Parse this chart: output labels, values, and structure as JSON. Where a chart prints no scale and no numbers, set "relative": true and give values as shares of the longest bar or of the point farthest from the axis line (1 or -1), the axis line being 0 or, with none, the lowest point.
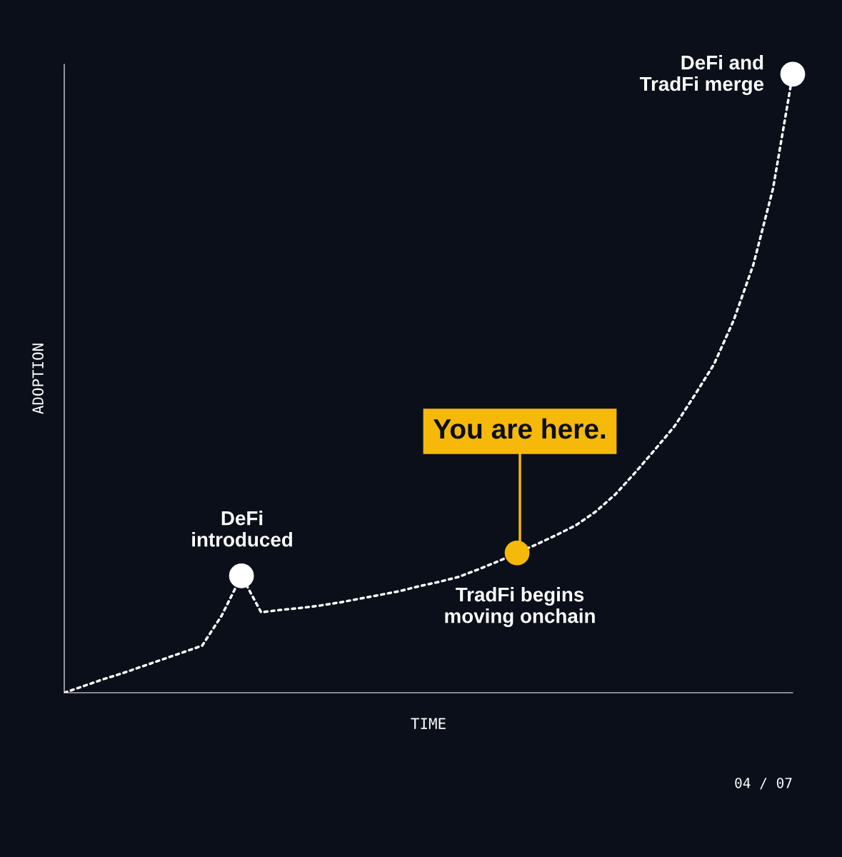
{
  "chart_data": {
    "type": "line",
    "relative": true,
    "xlabel": "TIME",
    "ylabel": "ADOPTION",
    "categories": [
      null,
      null,
      null,
      null,
      null,
      null,
      null,
      null,
      null,
      null,
      null,
      null,
      null,
      null,
      null,
      null,
      null,
      null,
      null,
      null,
      null,
      null,
      null,
      null,
      null,
      null,
      null,
      null,
      null,
      null,
      null,
      null,
      null,
      null,
      null,
      null,
      null,
      null
    ],
    "series": [
      {
        "color": "#ffffff",
        "line_style": "dotted",
        "colors": [
          null,
          null,
          null,
          null,
          null,
          null,
          null,
          null,
          null,
          "#ffffff",
          null,
          null,
          null,
          null,
          null,
          null,
          null,
          null,
          null,
          null,
          null,
          null,
          null,
          "#f6b90a",
          null,
          null,
          null,
          null,
          null,
          null,
          null,
          null,
          null,
          null,
          null,
          null,
          null,
          "#ffffff"
        ],
        "values": [
          0,
          0.011,
          0.022,
          0.032,
          0.043,
          0.054,
          0.065,
          0.076,
          0.125,
          0.189,
          0.13,
          0.134,
          0.137,
          0.141,
          0.146,
          0.152,
          0.158,
          0.164,
          0.172,
          0.179,
          0.187,
          0.199,
          0.212,
          0.226,
          0.24,
          0.255,
          0.271,
          0.293,
          0.321,
          0.356,
          0.393,
          0.431,
          0.48,
          0.531,
          0.602,
          0.692,
          0.815,
          1
        ]
      }
    ],
    "annotations": [
      "DeFi\nintroduced",
      "You are here.",
      "TradFi begins\nmoving onchain",
      "DeFi and\nTradFi merge",
      "04 / 07"
    ]
  }
}
